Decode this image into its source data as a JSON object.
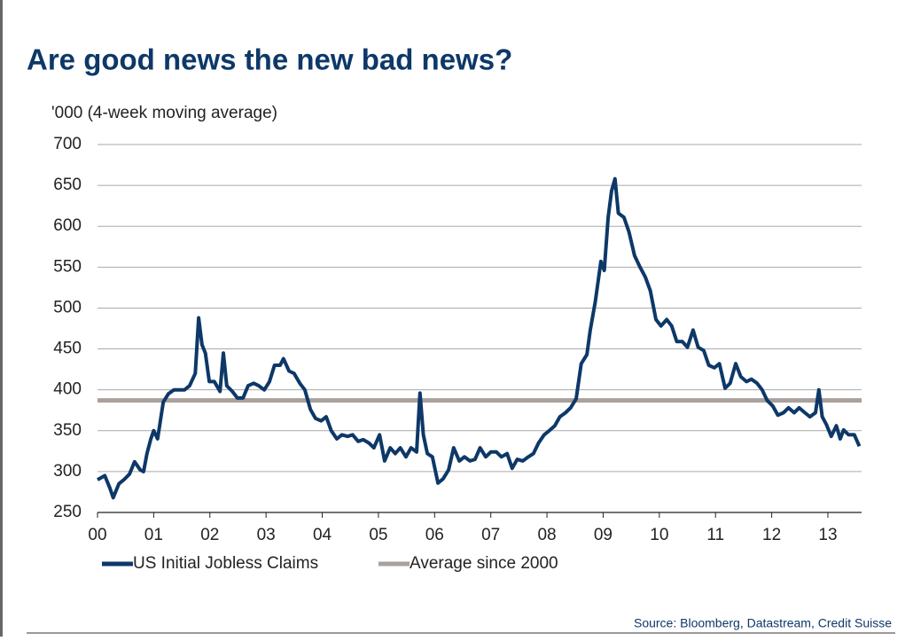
{
  "chart_data": {
    "type": "line",
    "title": "Are good news the new bad news?",
    "y_label": "'000 (4-week moving average)",
    "source": "Source: Bloomberg, Datastream, Credit Suisse",
    "xlim": [
      0,
      13.6
    ],
    "xticks": [
      {
        "value": 0,
        "label": "00"
      },
      {
        "value": 1,
        "label": "01"
      },
      {
        "value": 2,
        "label": "02"
      },
      {
        "value": 3,
        "label": "03"
      },
      {
        "value": 4,
        "label": "04"
      },
      {
        "value": 5,
        "label": "05"
      },
      {
        "value": 6,
        "label": "06"
      },
      {
        "value": 7,
        "label": "07"
      },
      {
        "value": 8,
        "label": "08"
      },
      {
        "value": 9,
        "label": "09"
      },
      {
        "value": 10,
        "label": "10"
      },
      {
        "value": 11,
        "label": "11"
      },
      {
        "value": 12,
        "label": "12"
      },
      {
        "value": 13,
        "label": "13"
      }
    ],
    "ylim": [
      250,
      700
    ],
    "yticks": [
      250,
      300,
      350,
      400,
      450,
      500,
      550,
      600,
      650,
      700
    ],
    "grid": true,
    "x": [
      0,
      0.13,
      0.22,
      0.28,
      0.38,
      0.47,
      0.57,
      0.66,
      0.76,
      0.82,
      0.88,
      0.95,
      1.0,
      1.07,
      1.17,
      1.26,
      1.36,
      1.45,
      1.55,
      1.64,
      1.74,
      1.8,
      1.86,
      1.92,
      1.99,
      2.08,
      2.18,
      2.24,
      2.3,
      2.4,
      2.49,
      2.59,
      2.68,
      2.78,
      2.87,
      2.97,
      3.06,
      3.15,
      3.25,
      3.31,
      3.41,
      3.5,
      3.6,
      3.69,
      3.79,
      3.88,
      3.98,
      4.07,
      4.16,
      4.26,
      4.35,
      4.45,
      4.54,
      4.64,
      4.73,
      4.83,
      4.92,
      5.02,
      5.11,
      5.21,
      5.3,
      5.39,
      5.49,
      5.58,
      5.68,
      5.74,
      5.8,
      5.87,
      5.96,
      6.06,
      6.15,
      6.25,
      6.34,
      6.44,
      6.53,
      6.63,
      6.72,
      6.81,
      6.91,
      7.0,
      7.1,
      7.19,
      7.29,
      7.38,
      7.47,
      7.57,
      7.67,
      7.76,
      7.85,
      7.95,
      8.04,
      8.14,
      8.23,
      8.33,
      8.42,
      8.52,
      8.61,
      8.71,
      8.77,
      8.86,
      8.96,
      9.02,
      9.09,
      9.15,
      9.21,
      9.27,
      9.37,
      9.46,
      9.56,
      9.65,
      9.75,
      9.84,
      9.94,
      10.03,
      10.13,
      10.22,
      10.31,
      10.41,
      10.5,
      10.6,
      10.69,
      10.79,
      10.88,
      10.98,
      11.07,
      11.17,
      11.26,
      11.36,
      11.45,
      11.55,
      11.64,
      11.74,
      11.83,
      11.92,
      12.02,
      12.11,
      12.21,
      12.3,
      12.4,
      12.49,
      12.59,
      12.68,
      12.78,
      12.84,
      12.9,
      12.97,
      13.06,
      13.15,
      13.22,
      13.28,
      13.37,
      13.47,
      13.56
    ],
    "series": [
      {
        "name": "US Initial Jobless Claims",
        "color": "#0d3868",
        "values": [
          290,
          295,
          280,
          268,
          285,
          290,
          297,
          312,
          302,
          300,
          322,
          340,
          350,
          340,
          385,
          395,
          400,
          400,
          400,
          405,
          420,
          488,
          455,
          445,
          410,
          410,
          398,
          445,
          405,
          398,
          390,
          390,
          405,
          408,
          405,
          400,
          410,
          430,
          430,
          438,
          423,
          420,
          408,
          400,
          376,
          365,
          362,
          367,
          350,
          340,
          345,
          343,
          345,
          337,
          339,
          335,
          329,
          345,
          313,
          329,
          322,
          329,
          318,
          329,
          324,
          396,
          345,
          322,
          318,
          286,
          291,
          302,
          329,
          313,
          318,
          313,
          315,
          329,
          318,
          324,
          324,
          318,
          322,
          304,
          315,
          313,
          318,
          322,
          335,
          345,
          350,
          356,
          367,
          372,
          378,
          389,
          432,
          443,
          473,
          508,
          557,
          546,
          611,
          643,
          658,
          616,
          611,
          593,
          564,
          551,
          538,
          521,
          486,
          478,
          486,
          478,
          459,
          459,
          452,
          473,
          452,
          448,
          430,
          427,
          432,
          402,
          408,
          432,
          416,
          410,
          413,
          408,
          400,
          387,
          380,
          369,
          372,
          378,
          372,
          378,
          372,
          367,
          372,
          400,
          367,
          358,
          343,
          356,
          340,
          351,
          345,
          345,
          331
        ]
      }
    ],
    "reference_lines": [
      {
        "name": "Average since 2000",
        "color": "#a9a19b",
        "value": 387
      }
    ]
  }
}
